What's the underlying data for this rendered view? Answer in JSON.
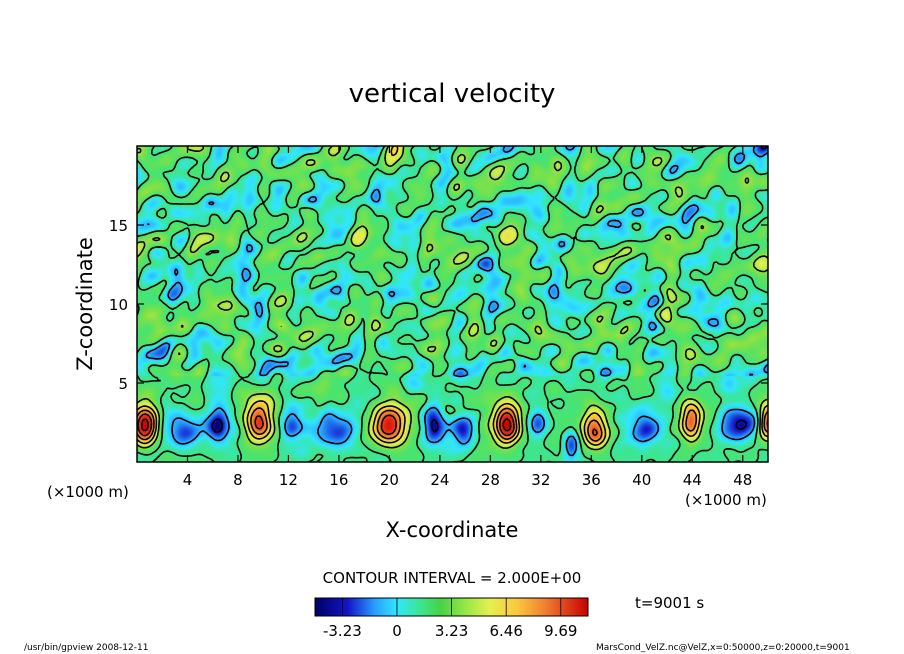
{
  "chart_data": {
    "type": "heatmap",
    "title": "vertical velocity",
    "xlabel": "X-coordinate",
    "ylabel": "Z-coordinate",
    "x_unit": "(×1000 m)",
    "y_unit": "(×1000 m)",
    "xlim": [
      0,
      50
    ],
    "ylim": [
      0,
      20
    ],
    "x_ticks": [
      4,
      8,
      12,
      16,
      20,
      24,
      28,
      32,
      36,
      40,
      44,
      48
    ],
    "y_ticks": [
      5,
      10,
      15
    ],
    "contour_interval_text": "CONTOUR INTERVAL = 2.000E+00",
    "time_text": "t=9001 s",
    "colorbar": {
      "range": [
        -4.85,
        11.3
      ],
      "tick_values": [
        -3.23,
        0,
        3.23,
        6.46,
        9.69
      ],
      "tick_labels": [
        "-3.23",
        "0",
        "3.23",
        "6.46",
        "9.69"
      ]
    },
    "cells": [
      {
        "x": 0.6,
        "z": 2.2,
        "w": 1.0,
        "lo": 1.0,
        "hi": 1.4,
        "amp": 11.0
      },
      {
        "x": 3.6,
        "z": 2.1,
        "w": 1.6,
        "lo": 1.0,
        "hi": 1.2,
        "amp": -3.2
      },
      {
        "x": 6.4,
        "z": 2.3,
        "w": 0.9,
        "lo": 1.0,
        "hi": 1.2,
        "amp": -4.2
      },
      {
        "x": 9.7,
        "z": 2.4,
        "w": 1.0,
        "lo": 1.1,
        "hi": 1.4,
        "amp": 8.8
      },
      {
        "x": 12.3,
        "z": 2.2,
        "w": 0.8,
        "lo": 1.0,
        "hi": 1.2,
        "amp": -3.0
      },
      {
        "x": 15.8,
        "z": 2.0,
        "w": 1.6,
        "lo": 1.0,
        "hi": 1.2,
        "amp": -4.0
      },
      {
        "x": 19.9,
        "z": 2.2,
        "w": 1.3,
        "lo": 1.1,
        "hi": 1.4,
        "amp": 9.8
      },
      {
        "x": 23.6,
        "z": 2.3,
        "w": 0.9,
        "lo": 1.0,
        "hi": 1.2,
        "amp": -4.5
      },
      {
        "x": 25.8,
        "z": 2.0,
        "w": 0.8,
        "lo": 1.0,
        "hi": 1.2,
        "amp": -3.4
      },
      {
        "x": 29.3,
        "z": 2.3,
        "w": 1.0,
        "lo": 1.1,
        "hi": 1.4,
        "amp": 11.0
      },
      {
        "x": 31.8,
        "z": 2.4,
        "w": 0.7,
        "lo": 0.8,
        "hi": 1.0,
        "amp": -3.0
      },
      {
        "x": 34.4,
        "z": 1.0,
        "w": 0.6,
        "lo": 0.8,
        "hi": 1.0,
        "amp": -3.0
      },
      {
        "x": 36.3,
        "z": 1.9,
        "w": 0.9,
        "lo": 1.0,
        "hi": 1.3,
        "amp": 8.5
      },
      {
        "x": 40.3,
        "z": 2.2,
        "w": 1.2,
        "lo": 1.0,
        "hi": 1.2,
        "amp": -4.5
      },
      {
        "x": 43.9,
        "z": 2.5,
        "w": 0.8,
        "lo": 1.1,
        "hi": 1.4,
        "amp": 8.0
      },
      {
        "x": 47.5,
        "z": 2.4,
        "w": 1.5,
        "lo": 1.0,
        "hi": 1.2,
        "amp": -4.5
      },
      {
        "x": 50.0,
        "z": 2.5,
        "w": 0.7,
        "lo": 1.0,
        "hi": 1.3,
        "amp": 9.0
      }
    ]
  },
  "footer": {
    "left": "/usr/bin/gpview   2008-12-11",
    "right": "MarsCond_VelZ.nc@VelZ,x=0:50000,z=0:20000,t=9001"
  },
  "colors": {
    "background_field": "#4be36c",
    "negative_extreme": "#000064",
    "positive_extreme": "#e60000"
  }
}
